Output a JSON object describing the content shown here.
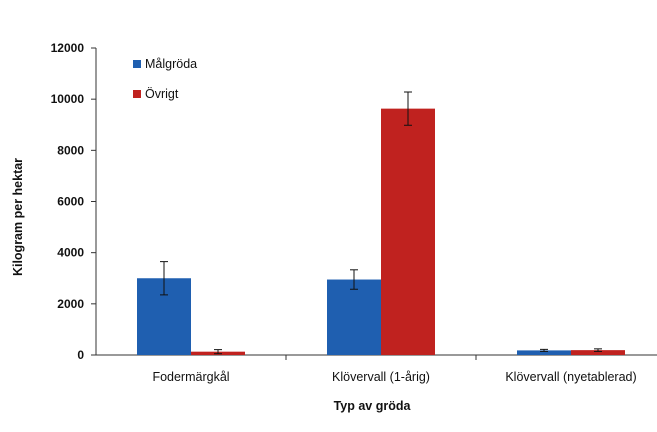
{
  "chart_data": {
    "type": "bar",
    "title": "",
    "xlabel": "Typ av gröda",
    "ylabel": "Kilogram per hektar",
    "ylim": [
      0,
      12000
    ],
    "yticks": [
      0,
      2000,
      4000,
      6000,
      8000,
      10000,
      12000
    ],
    "categories": [
      "Fodermärgkål",
      "Klövervall (1-årig)",
      "Klövervall (nyetablerad)"
    ],
    "series": [
      {
        "name": "Målgröda",
        "color": "#1f5fb0",
        "values": [
          3000,
          2950,
          180
        ],
        "errors": [
          650,
          380,
          40
        ]
      },
      {
        "name": "Övrigt",
        "color": "#c0221f",
        "values": [
          130,
          9630,
          190
        ],
        "errors": [
          80,
          650,
          50
        ]
      }
    ],
    "grid": false,
    "legend_position": "top-left"
  }
}
